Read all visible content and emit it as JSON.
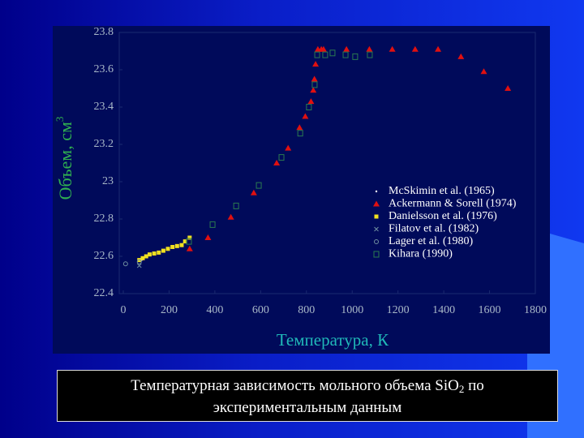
{
  "chart_data": {
    "type": "scatter",
    "ylabel": "Объем, см",
    "ylabel_sup": "3",
    "xlabel": "Температура, К",
    "xlim": [
      0,
      1800
    ],
    "xticks": [
      0,
      200,
      400,
      600,
      800,
      1000,
      1200,
      1400,
      1600,
      1800
    ],
    "ylim": [
      22.4,
      23.8
    ],
    "yticks": [
      22.4,
      22.6,
      22.8,
      23,
      23.2,
      23.4,
      23.6,
      23.8
    ],
    "legend": "right",
    "series": [
      {
        "name": "McSkimin et al. (1965)",
        "marker": "dot",
        "color": "#ffffff",
        "x": [
          80
        ],
        "values": [
          22.58
        ]
      },
      {
        "name": "Ackermann & Sorell (1974)",
        "marker": "triangle",
        "color": "#e01010",
        "x": [
          290,
          370,
          470,
          570,
          670,
          720,
          770,
          795,
          820,
          830,
          835,
          840,
          850,
          865,
          875,
          975,
          1075,
          1175,
          1275,
          1375,
          1475,
          1575,
          1680
        ],
        "values": [
          22.64,
          22.7,
          22.81,
          22.94,
          23.1,
          23.18,
          23.29,
          23.35,
          23.43,
          23.49,
          23.55,
          23.63,
          23.71,
          23.71,
          23.71,
          23.71,
          23.71,
          23.71,
          23.71,
          23.71,
          23.67,
          23.59,
          23.5
        ]
      },
      {
        "name": "Danielsson et al. (1976)",
        "marker": "square-filled",
        "color": "#f0e020",
        "x": [
          70,
          85,
          100,
          115,
          135,
          155,
          175,
          195,
          215,
          235,
          255,
          270,
          290
        ],
        "values": [
          22.58,
          22.59,
          22.6,
          22.61,
          22.615,
          22.62,
          22.63,
          22.64,
          22.65,
          22.655,
          22.66,
          22.68,
          22.7
        ]
      },
      {
        "name": "Filatov et al. (1982)",
        "marker": "cross",
        "color": "#7090a0",
        "x": [
          70
        ],
        "values": [
          22.55
        ]
      },
      {
        "name": "Lager et al. (1980)",
        "marker": "circle",
        "color": "#7090a0",
        "x": [
          10,
          70
        ],
        "values": [
          22.56,
          22.57
        ]
      },
      {
        "name": "Kihara (1990)",
        "marker": "square",
        "color": "#2a7a50",
        "x": [
          287,
          390,
          493,
          592,
          691,
          773,
          811,
          836,
          847,
          882,
          914,
          971,
          1013,
          1077
        ],
        "values": [
          22.68,
          22.77,
          22.87,
          22.98,
          23.13,
          23.26,
          23.4,
          23.52,
          23.68,
          23.68,
          23.69,
          23.68,
          23.67,
          23.68
        ]
      }
    ]
  },
  "caption": {
    "line1": "Температурная зависимость мольного объема SiO",
    "subscript": "2",
    "line1_end": " по",
    "line2": "экспериментальным данным"
  }
}
